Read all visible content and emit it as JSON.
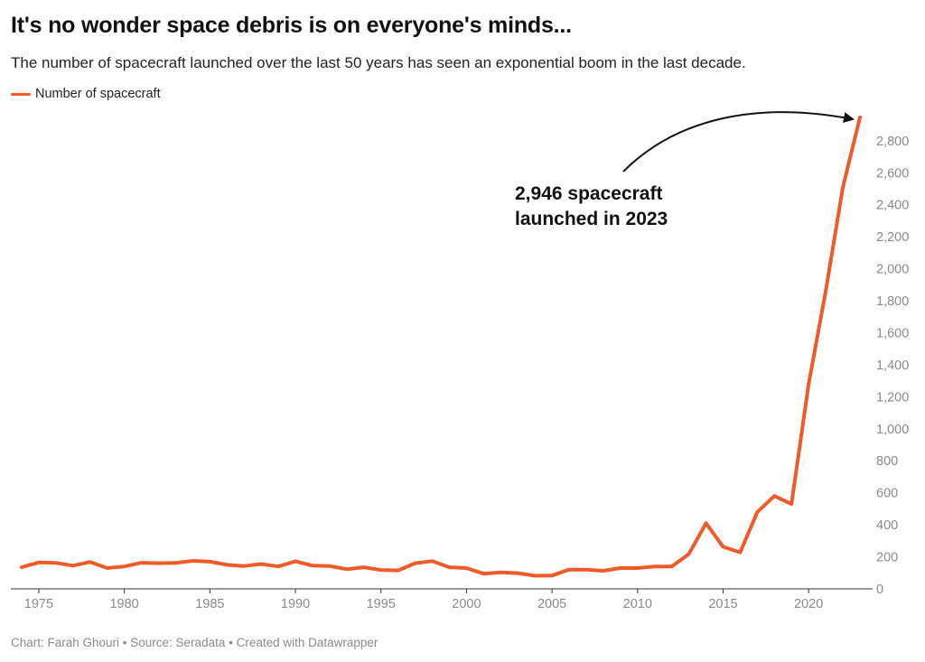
{
  "chart_data": {
    "type": "line",
    "title": "It's no wonder space debris is on everyone's minds...",
    "subtitle": "The number of spacecraft launched over the last 50 years has seen an exponential boom in the last decade.",
    "xlabel": "",
    "ylabel": "",
    "xlim": [
      1974,
      2023
    ],
    "ylim": [
      0,
      2946
    ],
    "x_ticks": [
      "1975",
      "1980",
      "1985",
      "1990",
      "1995",
      "2000",
      "2005",
      "2010",
      "2015",
      "2020"
    ],
    "y_ticks": [
      "0",
      "200",
      "400",
      "600",
      "800",
      "1,000",
      "1,200",
      "1,400",
      "1,600",
      "1,800",
      "2,000",
      "2,200",
      "2,400",
      "2,600",
      "2,800"
    ],
    "y_axis_side": "right",
    "grid": false,
    "legend_position": "top-left",
    "series": [
      {
        "name": "Number of spacecraft",
        "color": "#f05a28",
        "x": [
          1974,
          1975,
          1976,
          1977,
          1978,
          1979,
          1980,
          1981,
          1982,
          1983,
          1984,
          1985,
          1986,
          1987,
          1988,
          1989,
          1990,
          1991,
          1992,
          1993,
          1994,
          1995,
          1996,
          1997,
          1998,
          1999,
          2000,
          2001,
          2002,
          2003,
          2004,
          2005,
          2006,
          2007,
          2008,
          2009,
          2010,
          2011,
          2012,
          2013,
          2014,
          2015,
          2016,
          2017,
          2018,
          2019,
          2020,
          2021,
          2022,
          2023
        ],
        "values": [
          135,
          165,
          162,
          145,
          168,
          130,
          140,
          163,
          160,
          162,
          175,
          170,
          150,
          143,
          155,
          140,
          172,
          145,
          142,
          123,
          135,
          118,
          115,
          160,
          173,
          135,
          130,
          95,
          103,
          98,
          82,
          83,
          120,
          120,
          113,
          130,
          130,
          140,
          140,
          218,
          410,
          263,
          228,
          480,
          580,
          530,
          1280,
          1860,
          2510,
          2946
        ]
      }
    ],
    "annotations": [
      {
        "text_line1": "2,946 spacecraft",
        "text_line2": "launched in 2023",
        "target_x": 2023,
        "target_y": 2946
      }
    ]
  },
  "footer": "Chart: Farah Ghouri • Source: Seradata • Created with Datawrapper"
}
